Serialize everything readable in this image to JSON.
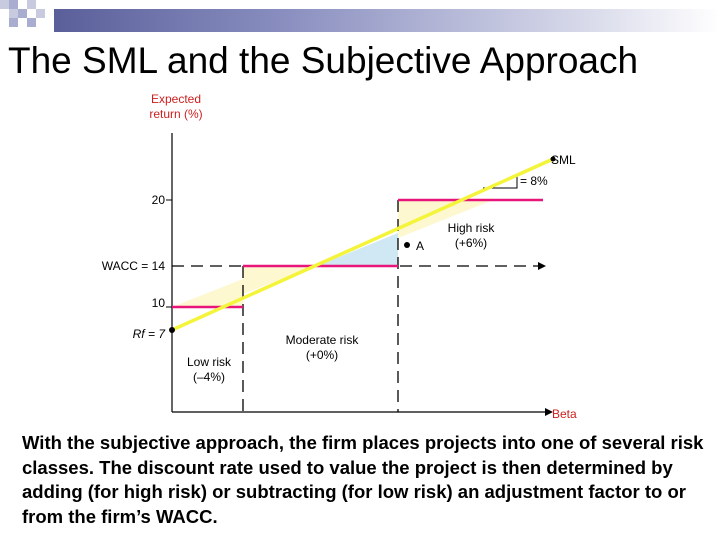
{
  "title": "The SML and the Subjective Approach",
  "axis": {
    "y_label_line1": "Expected",
    "y_label_line2": "return (%)",
    "x_label": "Beta",
    "tick_20": "20",
    "tick_wacc": "WACC = 14",
    "tick_10": "10",
    "tick_rf": "Rf = 7"
  },
  "sml": {
    "label": "SML",
    "slope_label": "= 8%"
  },
  "point_a": "A",
  "classes": {
    "high_line1": "High risk",
    "high_line2": "(+6%)",
    "moderate_line1": "Moderate risk",
    "moderate_line2": "(+0%)",
    "low_line1": "Low risk",
    "low_line2": "(–4%)"
  },
  "body": "With the subjective approach, the firm places projects into one of several risk classes. The discount rate used to value the project is then determined by adding (for high risk) or subtracting (for low risk) an adjustment factor to or from the firm’s WACC.",
  "colors": {
    "sml_line": "#f4f43a",
    "rate_lines": "#e8157a",
    "y_axis_label": "#cc1f1f",
    "high_risk_fill": "#cfe8f3",
    "low_risk_fill": "#fdf8cf",
    "title_bar": "#5a5f9a"
  }
}
